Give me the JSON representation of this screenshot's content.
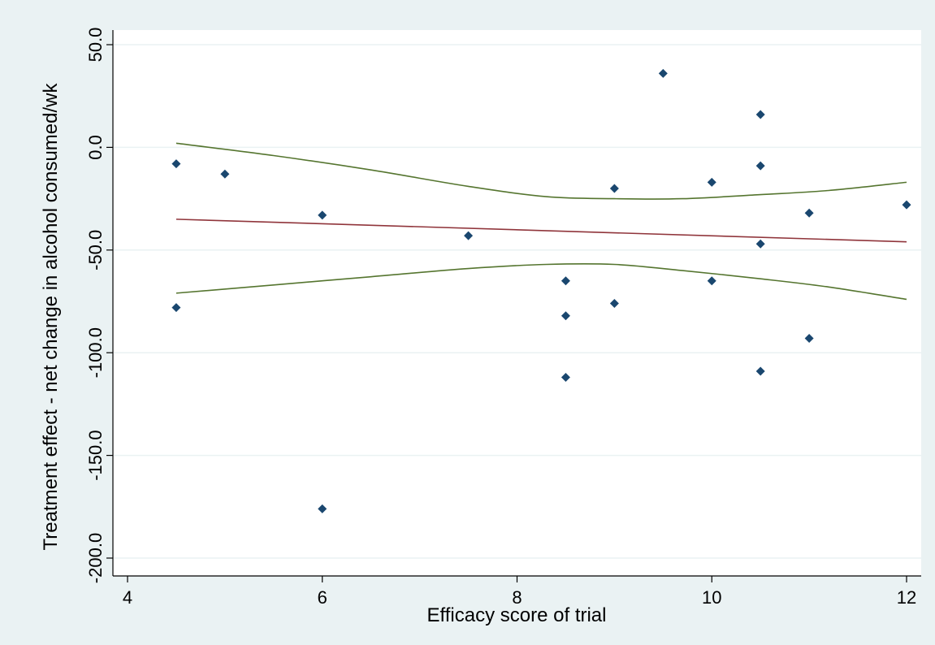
{
  "colors": {
    "outer_background": "#eaf2f3",
    "plot_background": "#ffffff",
    "gridline": "#eaf2f3",
    "point": "#1a476f",
    "fit_line": "#90353b",
    "ci_line": "#55752f",
    "axis": "#000000"
  },
  "chart_data": {
    "type": "scatter",
    "title": "",
    "xlabel": "Efficacy score of trial",
    "ylabel": "Treatment effect - net change in alcohol consumed/wk",
    "xlim": [
      4,
      12
    ],
    "ylim": [
      -200,
      50
    ],
    "x_ticks": [
      4,
      6,
      8,
      10,
      12
    ],
    "x_tick_labels": [
      "4",
      "6",
      "8",
      "10",
      "12"
    ],
    "y_ticks": [
      50,
      0,
      -50,
      -100,
      -150,
      -200
    ],
    "y_tick_labels": [
      "50.0",
      "0.0",
      "-50.0",
      "-100.0",
      "-150.0",
      "-200.0"
    ],
    "grid": true,
    "legend": "none",
    "points": [
      {
        "x": 4.5,
        "y": -8
      },
      {
        "x": 4.5,
        "y": -78
      },
      {
        "x": 5.0,
        "y": -13
      },
      {
        "x": 6.0,
        "y": -33
      },
      {
        "x": 6.0,
        "y": -176
      },
      {
        "x": 7.5,
        "y": -43
      },
      {
        "x": 8.5,
        "y": -65
      },
      {
        "x": 8.5,
        "y": -82
      },
      {
        "x": 8.5,
        "y": -112
      },
      {
        "x": 9.0,
        "y": -20
      },
      {
        "x": 9.0,
        "y": -76
      },
      {
        "x": 9.5,
        "y": 36
      },
      {
        "x": 10.0,
        "y": -17
      },
      {
        "x": 10.0,
        "y": -65
      },
      {
        "x": 10.5,
        "y": 16
      },
      {
        "x": 10.5,
        "y": -9
      },
      {
        "x": 10.5,
        "y": -47
      },
      {
        "x": 10.5,
        "y": -109
      },
      {
        "x": 11.0,
        "y": -32
      },
      {
        "x": 11.0,
        "y": -93
      },
      {
        "x": 12.0,
        "y": -28
      }
    ],
    "fit_line": [
      {
        "x": 4.5,
        "y": -35
      },
      {
        "x": 12.0,
        "y": -46
      }
    ],
    "ci_upper": [
      {
        "x": 4.5,
        "y": 2
      },
      {
        "x": 5.5,
        "y": -4
      },
      {
        "x": 6.5,
        "y": -11
      },
      {
        "x": 7.5,
        "y": -19
      },
      {
        "x": 8.3,
        "y": -24
      },
      {
        "x": 9.0,
        "y": -25
      },
      {
        "x": 9.7,
        "y": -25
      },
      {
        "x": 10.5,
        "y": -23
      },
      {
        "x": 11.2,
        "y": -21
      },
      {
        "x": 12.0,
        "y": -17
      }
    ],
    "ci_lower": [
      {
        "x": 4.5,
        "y": -71
      },
      {
        "x": 5.5,
        "y": -67
      },
      {
        "x": 6.5,
        "y": -63
      },
      {
        "x": 7.5,
        "y": -59
      },
      {
        "x": 8.3,
        "y": -57
      },
      {
        "x": 9.0,
        "y": -57
      },
      {
        "x": 9.7,
        "y": -60
      },
      {
        "x": 10.5,
        "y": -64
      },
      {
        "x": 11.2,
        "y": -68
      },
      {
        "x": 12.0,
        "y": -74
      }
    ]
  }
}
